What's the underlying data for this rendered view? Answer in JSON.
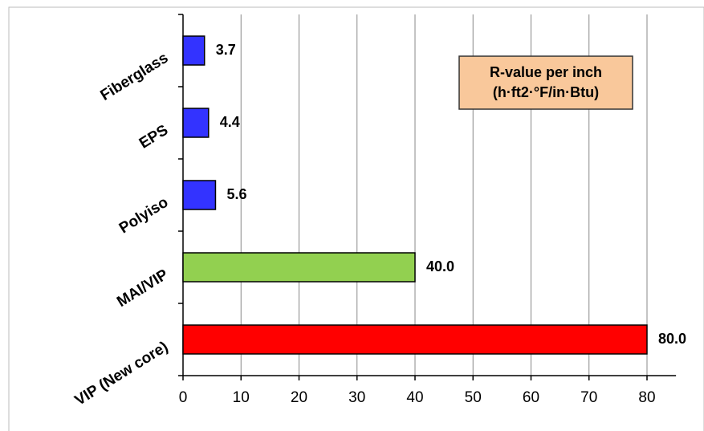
{
  "chart_data": {
    "type": "barh",
    "categories": [
      "Fiberglass",
      "EPS",
      "Polyiso",
      "MAI/VIP",
      "VIP (New core)"
    ],
    "values": [
      3.7,
      4.4,
      5.6,
      40,
      80
    ],
    "value_labels": [
      "3.7",
      "4.4",
      "5.6",
      "40.0",
      "80.0"
    ],
    "colors": [
      "#3333ff",
      "#3333ff",
      "#3333ff",
      "#92d050",
      "#ff0000"
    ],
    "annotation": [
      "R-value per inch",
      "(h·ft2·°F/in·Btu)"
    ],
    "xlim": [
      0,
      85
    ],
    "xticks": [
      0,
      10,
      20,
      30,
      40,
      50,
      60,
      70,
      80
    ],
    "grid": true
  }
}
